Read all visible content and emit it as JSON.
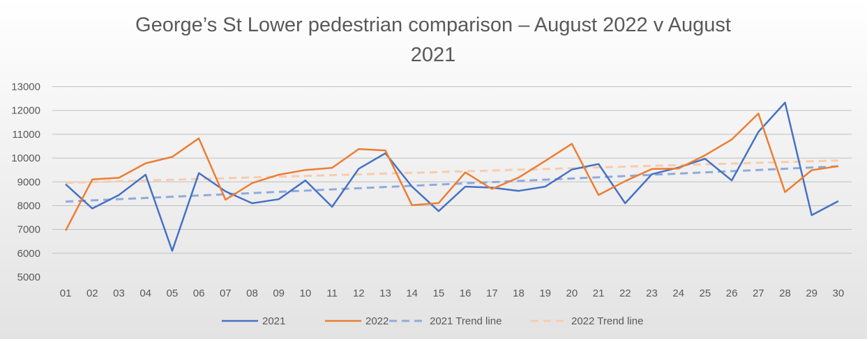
{
  "chart_data": {
    "type": "line",
    "title_lines": [
      "George’s St Lower pedestrian comparison – August 2022 v August",
      "2021"
    ],
    "xlabel": "",
    "ylabel": "",
    "ylim": [
      5000,
      13000
    ],
    "y_ticks": [
      "5000",
      "6000",
      "7000",
      "8000",
      "9000",
      "10000",
      "11000",
      "12000",
      "13000"
    ],
    "categories": [
      "01",
      "02",
      "03",
      "04",
      "05",
      "06",
      "07",
      "08",
      "09",
      "10",
      "11",
      "12",
      "13",
      "14",
      "15",
      "16",
      "17",
      "18",
      "19",
      "20",
      "21",
      "22",
      "23",
      "24",
      "25",
      "26",
      "27",
      "28",
      "29",
      "30"
    ],
    "grid": "horizontal",
    "legend_position": "bottom",
    "series": [
      {
        "name": "2021",
        "color": "#4472C4",
        "style": "solid",
        "values": [
          8900,
          7880,
          8450,
          9300,
          6100,
          9370,
          8600,
          8100,
          8270,
          9060,
          7950,
          9550,
          10200,
          8800,
          7770,
          8800,
          8760,
          8620,
          8800,
          9520,
          9750,
          8100,
          9320,
          9600,
          9970,
          9060,
          11100,
          12330,
          7600,
          8190
        ]
      },
      {
        "name": "2022",
        "color": "#ED7D31",
        "style": "solid",
        "values": [
          6950,
          9100,
          9170,
          9780,
          10050,
          10830,
          8250,
          8950,
          9300,
          9500,
          9590,
          10380,
          10320,
          8020,
          8110,
          9400,
          8700,
          9180,
          9880,
          10600,
          8450,
          9030,
          9540,
          9560,
          10120,
          10780,
          11870,
          8570,
          9490,
          9660
        ]
      },
      {
        "name": "2021 Trend line",
        "color": "#8FAADC",
        "style": "dashed",
        "values": [
          8170,
          8221,
          8272,
          8324,
          8375,
          8426,
          8477,
          8528,
          8579,
          8631,
          8682,
          8733,
          8784,
          8835,
          8886,
          8938,
          8989,
          9040,
          9091,
          9142,
          9193,
          9244,
          9296,
          9347,
          9398,
          9449,
          9500,
          9551,
          9603,
          9654
        ]
      },
      {
        "name": "2022 Trend line",
        "color": "#F8CBAD",
        "style": "dashed",
        "values": [
          8960,
          8992,
          9025,
          9057,
          9089,
          9121,
          9154,
          9186,
          9218,
          9251,
          9283,
          9315,
          9347,
          9380,
          9412,
          9444,
          9477,
          9509,
          9541,
          9573,
          9606,
          9638,
          9670,
          9703,
          9735,
          9767,
          9799,
          9832,
          9864,
          9896
        ]
      }
    ]
  }
}
